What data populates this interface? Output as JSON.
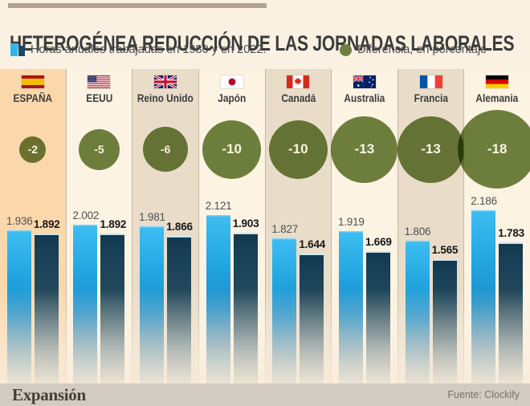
{
  "header": {
    "title": "HETEROGÉNEA REDUCCIÓN DE LAS JORNADAS LABORALES"
  },
  "legend": {
    "bars_label": "Horas anuales trabajadas en 1980 y en 2022.",
    "circle_label": "Diferencia, en porcentaje"
  },
  "colors": {
    "bar_1980": "#2fb5ee",
    "bar_2022": "#1b4a66",
    "difference_circle": "#6d7f3e",
    "highlight_column": "#fbd8ac",
    "background": "#faf1e2"
  },
  "countries": [
    {
      "label": "ESPAÑA",
      "flag": "spain",
      "pct": -2,
      "pct_label": "-2",
      "v1980": 1936,
      "v1980_label": "1.936",
      "v2022": 1892,
      "v2022_label": "1.892"
    },
    {
      "label": "EEUU",
      "flag": "united-states",
      "pct": -5,
      "pct_label": "-5",
      "v1980": 2002,
      "v1980_label": "2.002",
      "v2022": 1892,
      "v2022_label": "1.892"
    },
    {
      "label": "Reino Unido",
      "flag": "united-kingdom",
      "pct": -6,
      "pct_label": "-6",
      "v1980": 1981,
      "v1980_label": "1.981",
      "v2022": 1866,
      "v2022_label": "1.866"
    },
    {
      "label": "Japón",
      "flag": "japan",
      "pct": -10,
      "pct_label": "-10",
      "v1980": 2121,
      "v1980_label": "2.121",
      "v2022": 1903,
      "v2022_label": "1.903"
    },
    {
      "label": "Canadá",
      "flag": "canada",
      "pct": -10,
      "pct_label": "-10",
      "v1980": 1827,
      "v1980_label": "1.827",
      "v2022": 1644,
      "v2022_label": "1.644"
    },
    {
      "label": "Australia",
      "flag": "australia",
      "pct": -13,
      "pct_label": "-13",
      "v1980": 1919,
      "v1980_label": "1.919",
      "v2022": 1669,
      "v2022_label": "1.669"
    },
    {
      "label": "Francia",
      "flag": "france",
      "pct": -13,
      "pct_label": "-13",
      "v1980": 1806,
      "v1980_label": "1.806",
      "v2022": 1565,
      "v2022_label": "1.565"
    },
    {
      "label": "Alemania",
      "flag": "germany",
      "pct": -18,
      "pct_label": "-18",
      "v1980": 2186,
      "v1980_label": "2.186",
      "v2022": 1783,
      "v2022_label": "1.783"
    }
  ],
  "chart_data": {
    "type": "bar",
    "title": "HETEROGÉNEA REDUCCIÓN DE LAS JORNADAS LABORALES",
    "categories": [
      "ESPAÑA",
      "EEUU",
      "Reino Unido",
      "Japón",
      "Canadá",
      "Australia",
      "Francia",
      "Alemania"
    ],
    "series": [
      {
        "name": "Horas anuales trabajadas en 1980",
        "values": [
          1936,
          2002,
          1981,
          2121,
          1827,
          1919,
          1806,
          2186
        ]
      },
      {
        "name": "Horas anuales trabajadas en 2022",
        "values": [
          1892,
          1892,
          1866,
          1903,
          1644,
          1669,
          1565,
          1783
        ]
      }
    ],
    "bubble_series": {
      "name": "Diferencia, en porcentaje",
      "values": [
        -2,
        -5,
        -6,
        -10,
        -10,
        -13,
        -13,
        -18
      ]
    },
    "xlabel": "",
    "ylabel": "Horas anuales trabajadas",
    "ylim": [
      0,
      2200
    ],
    "grid": false,
    "legend_position": "top"
  },
  "footer": {
    "brand": "Expansión",
    "source": "Fuente: Clockify"
  }
}
